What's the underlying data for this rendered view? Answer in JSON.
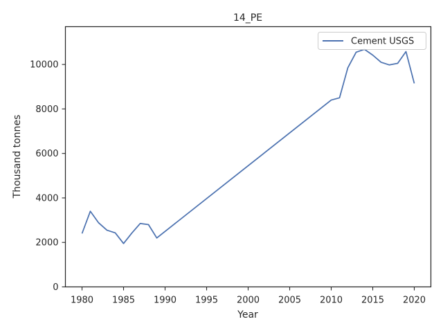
{
  "chart_data": {
    "type": "line",
    "title": "14_PE",
    "xlabel": "Year",
    "ylabel": "Thousand tonnes",
    "xlim": [
      1978,
      2022
    ],
    "ylim": [
      0,
      11700
    ],
    "xticks": [
      1980,
      1985,
      1990,
      1995,
      2000,
      2005,
      2010,
      2015,
      2020
    ],
    "yticks": [
      0,
      2000,
      4000,
      6000,
      8000,
      10000
    ],
    "grid": false,
    "legend_position": "top-right",
    "series": [
      {
        "name": "Cement USGS",
        "color": "#4c72b0",
        "x": [
          1980,
          1981,
          1982,
          1983,
          1984,
          1985,
          1986,
          1987,
          1988,
          1989,
          2010,
          2011,
          2012,
          2013,
          2014,
          2015,
          2016,
          2017,
          2018,
          2019,
          2020
        ],
        "y": [
          2400,
          3400,
          2880,
          2550,
          2430,
          1950,
          2420,
          2850,
          2800,
          2200,
          8400,
          8500,
          9850,
          10550,
          10680,
          10420,
          10100,
          9980,
          10050,
          10580,
          9150
        ]
      }
    ]
  }
}
